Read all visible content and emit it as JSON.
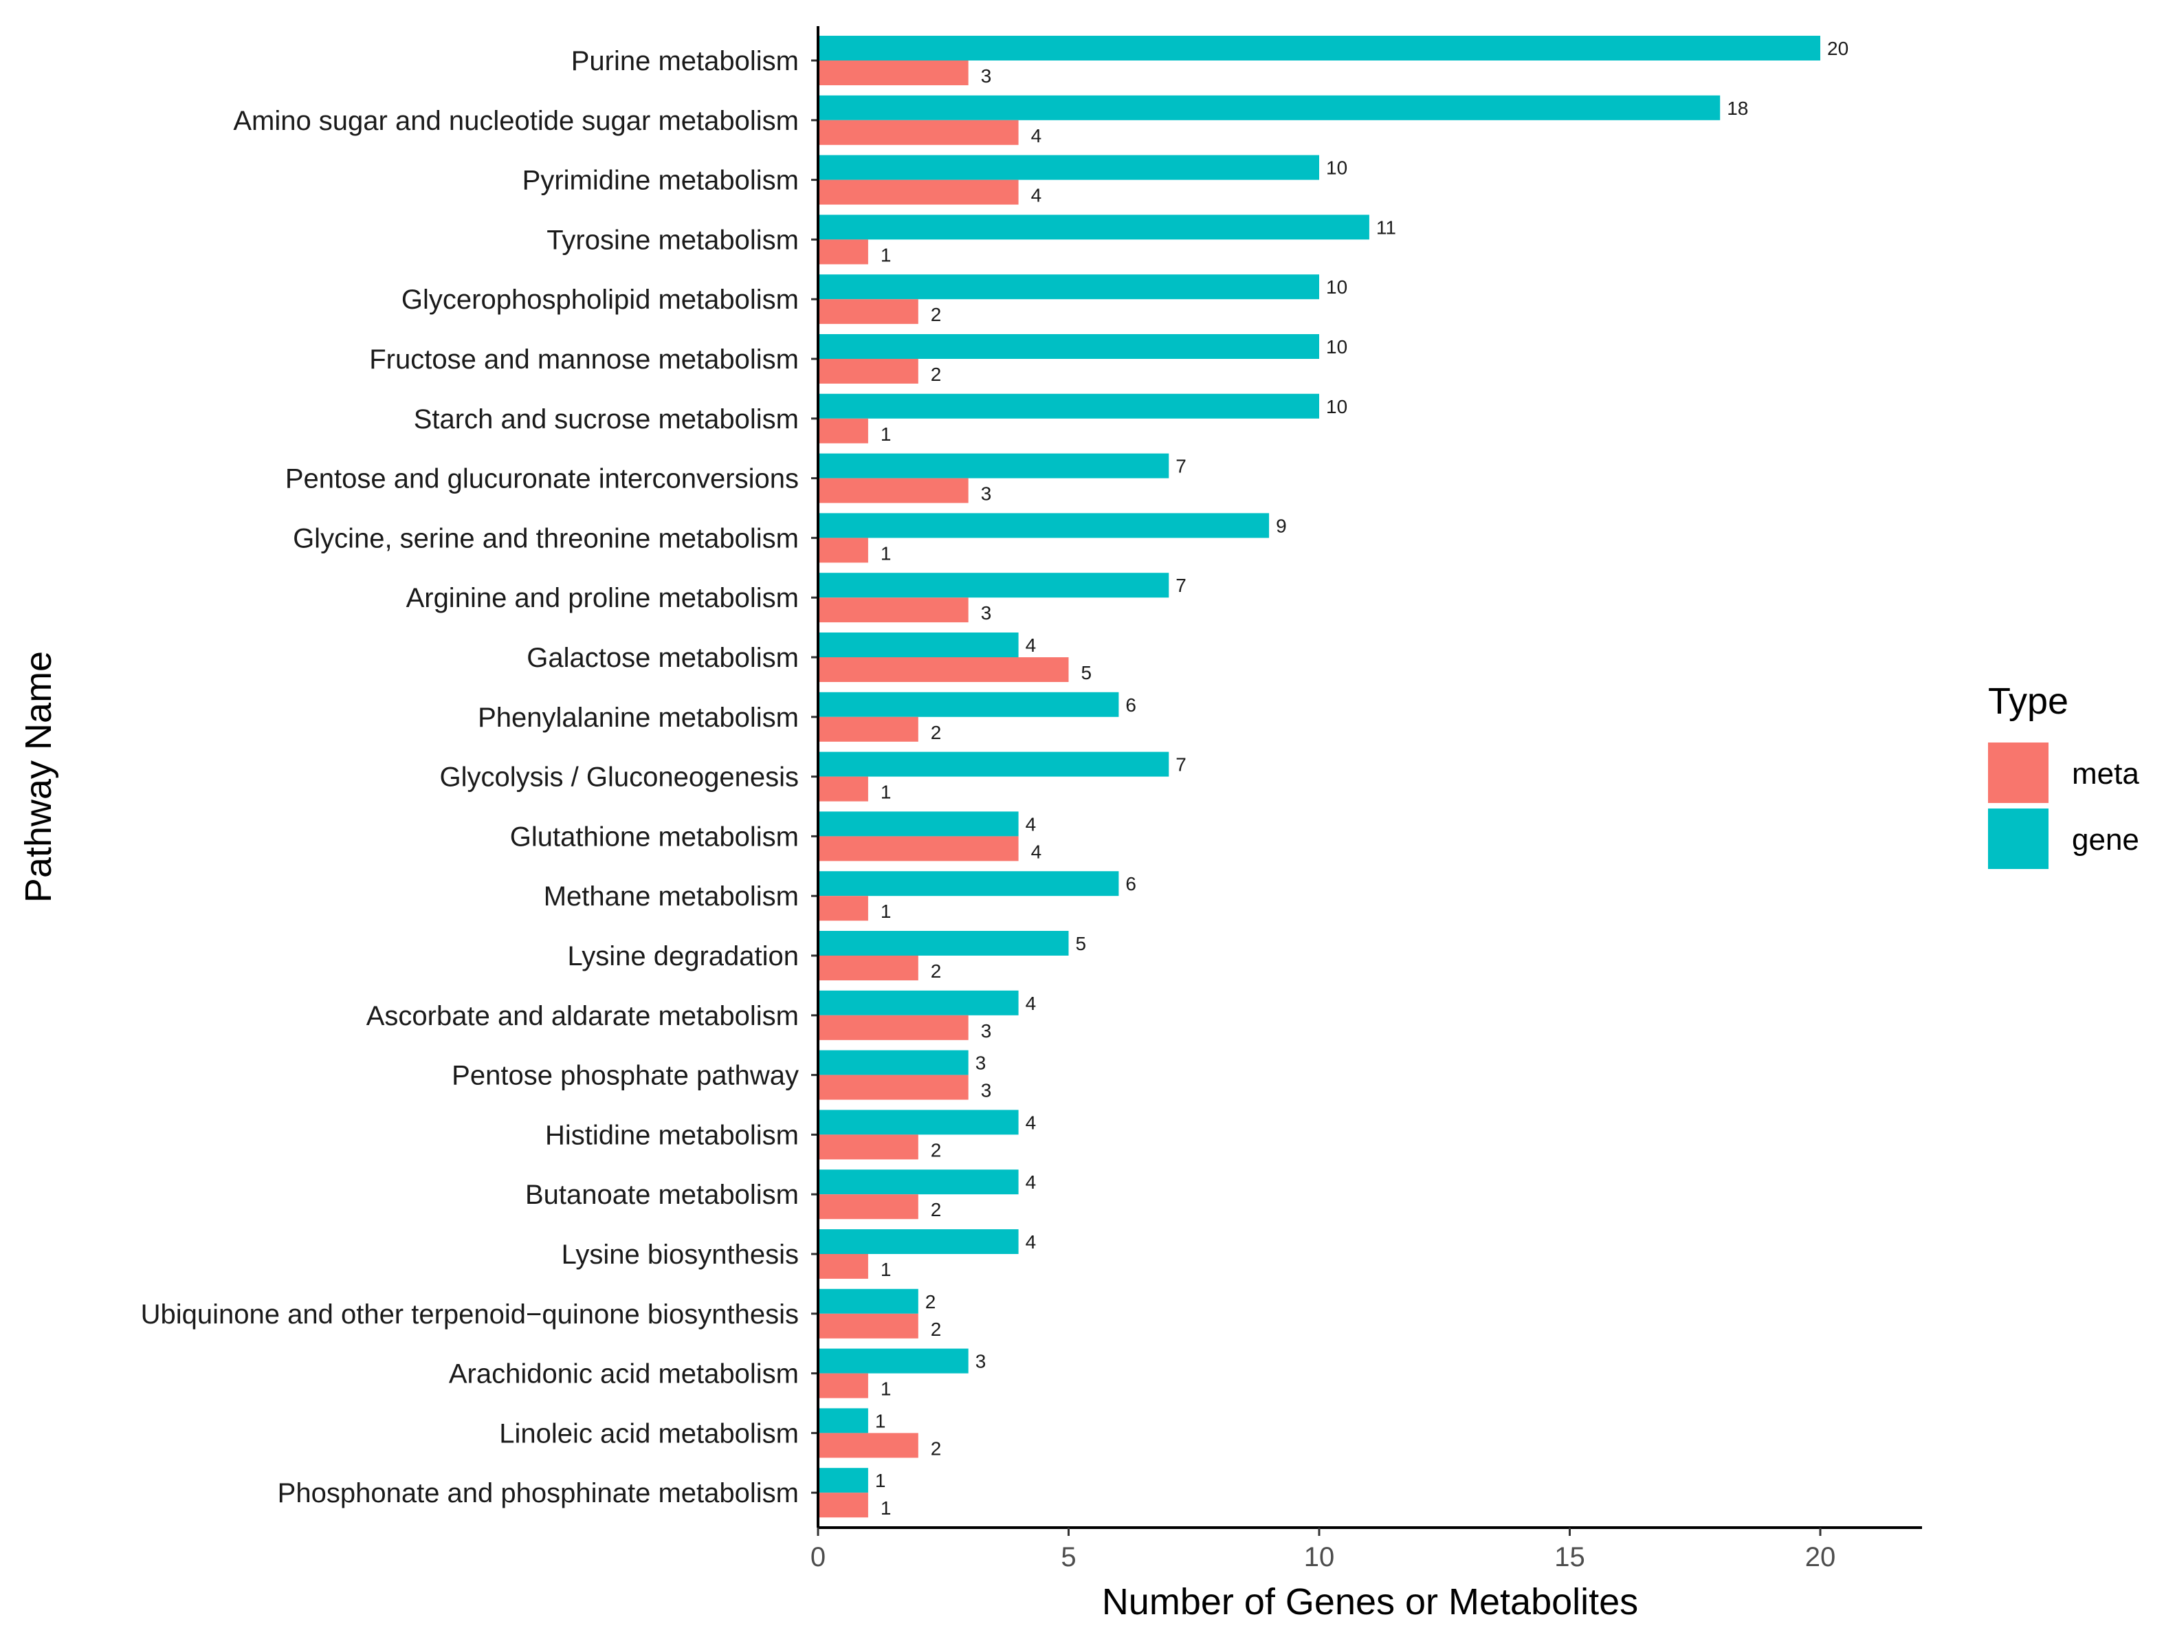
{
  "chart_data": {
    "type": "bar",
    "orientation": "horizontal",
    "title": "",
    "xlabel": "Number of Genes or Metabolites",
    "ylabel": "Pathway Name",
    "xlim": [
      0,
      22
    ],
    "xticks": [
      0,
      5,
      10,
      15,
      20
    ],
    "grid": false,
    "legend": {
      "title": "Type",
      "position": "right"
    },
    "categories": [
      "Purine metabolism",
      "Amino sugar and nucleotide sugar metabolism",
      "Pyrimidine metabolism",
      "Tyrosine metabolism",
      "Glycerophospholipid metabolism",
      "Fructose and mannose metabolism",
      "Starch and sucrose metabolism",
      "Pentose and glucuronate interconversions",
      "Glycine, serine and threonine metabolism",
      "Arginine and proline metabolism",
      "Galactose metabolism",
      "Phenylalanine metabolism",
      "Glycolysis / Gluconeogenesis",
      "Glutathione metabolism",
      "Methane metabolism",
      "Lysine degradation",
      "Ascorbate and aldarate metabolism",
      "Pentose phosphate pathway",
      "Histidine metabolism",
      "Butanoate metabolism",
      "Lysine biosynthesis",
      "Ubiquinone and other terpenoid−quinone biosynthesis",
      "Arachidonic acid metabolism",
      "Linoleic acid metabolism",
      "Phosphonate and phosphinate metabolism"
    ],
    "series": [
      {
        "name": "meta",
        "color": "#F8766D",
        "values": [
          3,
          4,
          4,
          1,
          2,
          2,
          1,
          3,
          1,
          3,
          5,
          2,
          1,
          4,
          1,
          2,
          3,
          3,
          2,
          2,
          1,
          2,
          1,
          2,
          1
        ]
      },
      {
        "name": "gene",
        "color": "#00BFC4",
        "values": [
          20,
          18,
          10,
          11,
          10,
          10,
          10,
          7,
          9,
          7,
          4,
          6,
          7,
          4,
          6,
          5,
          4,
          3,
          4,
          4,
          4,
          2,
          3,
          1,
          1
        ]
      }
    ]
  }
}
